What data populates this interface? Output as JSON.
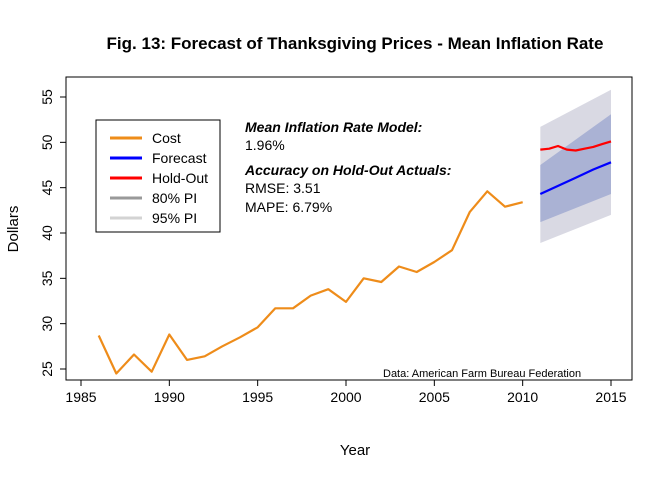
{
  "chart_data": {
    "type": "line",
    "title": "Fig. 13: Forecast of Thanksgiving Prices - Mean Inflation Rate",
    "xlabel": "Year",
    "ylabel": "Dollars",
    "xlim": [
      1985,
      2016
    ],
    "ylim": [
      24,
      56
    ],
    "x_ticks": [
      1985,
      1990,
      1995,
      2000,
      2005,
      2010,
      2015
    ],
    "y_ticks": [
      25,
      30,
      35,
      40,
      45,
      50,
      55
    ],
    "series": [
      {
        "name": "Cost",
        "color": "#EE8C1A",
        "x": [
          1986,
          1987,
          1988,
          1989,
          1990,
          1991,
          1992,
          1993,
          1994,
          1995,
          1996,
          1997,
          1998,
          1999,
          2000,
          2001,
          2002,
          2003,
          2004,
          2005,
          2006,
          2007,
          2008,
          2009,
          2010
        ],
        "values": [
          28.7,
          24.5,
          26.6,
          24.7,
          28.8,
          26.0,
          26.4,
          27.5,
          28.5,
          29.6,
          31.7,
          31.7,
          33.1,
          33.8,
          32.4,
          35.0,
          34.6,
          36.3,
          35.7,
          36.8,
          38.1,
          42.3,
          44.6,
          42.9,
          43.4
        ]
      },
      {
        "name": "Forecast",
        "color": "#0000FF",
        "x": [
          2011,
          2012,
          2013,
          2014,
          2015
        ],
        "values": [
          44.3,
          45.2,
          46.1,
          47.0,
          47.8
        ]
      },
      {
        "name": "Hold-Out",
        "color": "#FF0000",
        "x": [
          2011,
          2011.5,
          2012,
          2012.5,
          2013,
          2013.5,
          2014,
          2014.5,
          2015
        ],
        "values": [
          49.2,
          49.3,
          49.6,
          49.2,
          49.1,
          49.3,
          49.5,
          49.8,
          50.1
        ]
      }
    ],
    "intervals": [
      {
        "name": "80% PI",
        "color": "#AAB2D4",
        "x": [
          2011,
          2015
        ],
        "lower": [
          41.2,
          44.3
        ],
        "upper": [
          47.5,
          53.1
        ]
      },
      {
        "name": "95% PI",
        "color": "#D9D9E3",
        "x": [
          2011,
          2015
        ],
        "lower": [
          38.9,
          42.0
        ],
        "upper": [
          51.7,
          55.8
        ]
      }
    ],
    "legend": {
      "placement": "top-left",
      "entries": [
        {
          "label": "Cost",
          "color": "#EE8C1A"
        },
        {
          "label": "Forecast",
          "color": "#0000FF"
        },
        {
          "label": "Hold-Out",
          "color": "#FF0000"
        },
        {
          "label": "80% PI",
          "color": "#999999"
        },
        {
          "label": "95% PI",
          "color": "#D3D3D3"
        }
      ]
    },
    "annotations": {
      "model_heading": "Mean Inflation Rate Model:",
      "model_value": "1.96%",
      "accuracy_heading": "Accuracy on Hold-Out Actuals:",
      "rmse": "RMSE: 3.51",
      "mape": "MAPE: 6.79%",
      "source": "Data: American Farm Bureau Federation"
    },
    "grid": false
  }
}
